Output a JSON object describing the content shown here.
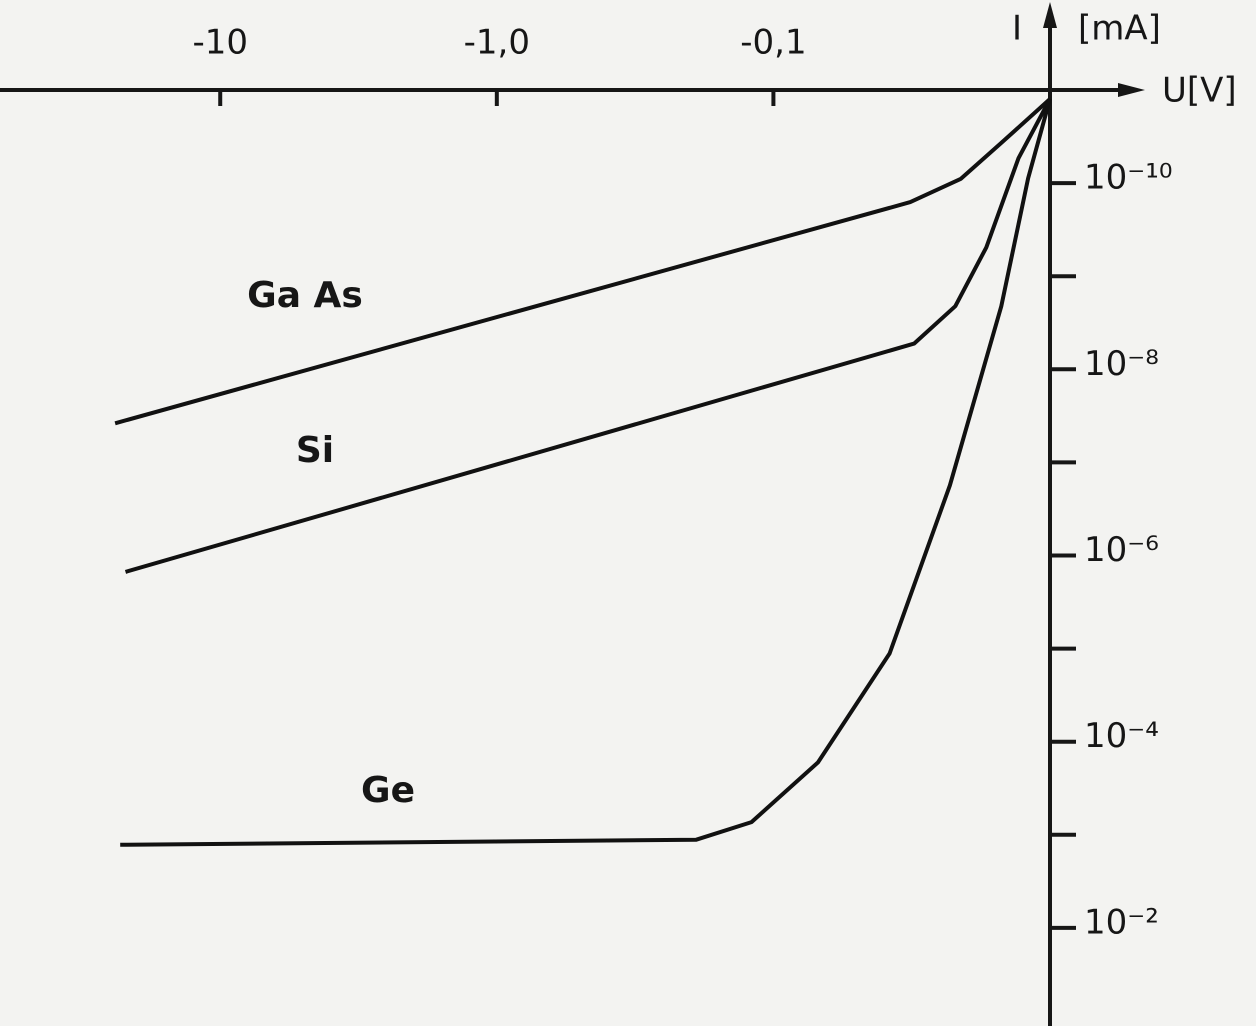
{
  "chart_data": {
    "type": "line",
    "x_label": "U[V]",
    "y_label": "I",
    "y_unit": "[mA]",
    "xscale": "log",
    "yscale": "log",
    "y_inverted": true,
    "xlim": [
      -60,
      -0.01
    ],
    "xticks": [
      -10,
      {
        "value": -1,
        "label": "-1,0"
      },
      {
        "value": -0.1,
        "label": "-0,1"
      }
    ],
    "ylim": [
      1e-11,
      0.1
    ],
    "yticks": [
      {
        "value": 1e-10,
        "label": "10⁻¹⁰"
      },
      {
        "value": 1e-08,
        "label": "10⁻⁸"
      },
      {
        "value": 1e-06,
        "label": "10⁻⁶"
      },
      {
        "value": 0.0001,
        "label": "10⁻⁴"
      },
      {
        "value": 0.01,
        "label": "10⁻²"
      }
    ],
    "yminorticks": [
      1e-09,
      1e-07,
      1e-05,
      0.001
    ],
    "series": [
      {
        "name": "Ga As",
        "color": "#111111",
        "x": [
          -24,
          -0.032,
          -0.021,
          -0.015,
          -0.01
        ],
        "values": [
          3.8e-08,
          1.6e-10,
          9e-11,
          3.7e-11,
          1.25e-11
        ]
      },
      {
        "name": "Si",
        "color": "#111111",
        "x": [
          -22,
          -0.031,
          -0.022,
          -0.017,
          -0.013,
          -0.01
        ],
        "values": [
          1.5e-06,
          5.3e-09,
          2.1e-09,
          4.9e-10,
          5.4e-11,
          1.25e-11
        ]
      },
      {
        "name": "Ge",
        "color": "#111111",
        "x": [
          -23,
          -0.19,
          -0.12,
          -0.069,
          -0.038,
          -0.023,
          -0.015,
          -0.012,
          -0.01
        ],
        "values": [
          0.00128,
          0.00113,
          0.00073,
          0.000167,
          1.13e-05,
          1.76e-07,
          2.1e-09,
          8.9e-11,
          1.25e-11
        ]
      }
    ]
  }
}
